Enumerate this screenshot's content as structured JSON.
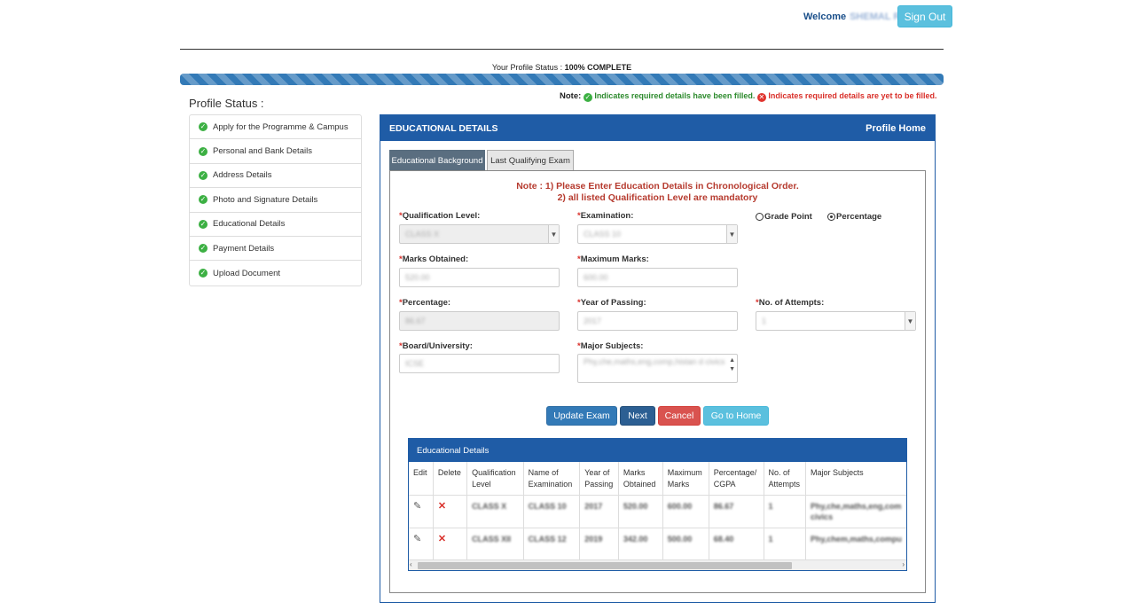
{
  "header": {
    "welcome_label": "Welcome",
    "user_name": "SHEMAL RAJ",
    "signout_label": "Sign Out"
  },
  "profile": {
    "status_label": "Your Profile Status :",
    "status_value": "100% COMPLETE",
    "progress_percent": 100
  },
  "note": {
    "label": "Note:",
    "filled": "Indicates required details have been filled.",
    "not_filled": "Indicates required details are yet to be filled."
  },
  "sidebar": {
    "title": "Profile Status :",
    "items": [
      {
        "label": "Apply for the Programme & Campus"
      },
      {
        "label": "Personal and Bank Details"
      },
      {
        "label": "Address Details"
      },
      {
        "label": "Photo and Signature Details"
      },
      {
        "label": "Educational Details"
      },
      {
        "label": "Payment Details"
      },
      {
        "label": "Upload Document"
      }
    ]
  },
  "panel": {
    "title": "EDUCATIONAL DETAILS",
    "home_link": "Profile Home",
    "tabs": [
      {
        "label": "Educational Background"
      },
      {
        "label": "Last Qualifying Exam"
      }
    ]
  },
  "instructions": {
    "line1": "Note : 1) Please Enter Education Details in Chronological Order.",
    "line2": "2) all listed Qualification Level are mandatory"
  },
  "form": {
    "qualification_level": {
      "label": "Qualification Level:",
      "value": "CLASS X"
    },
    "examination": {
      "label": "Examination:",
      "value": "CLASS 10"
    },
    "grade_point": {
      "label": "Grade Point",
      "selected": false
    },
    "percentage_radio": {
      "label": "Percentage",
      "selected": true
    },
    "marks_obtained": {
      "label": "Marks Obtained:",
      "value": "520.00"
    },
    "maximum_marks": {
      "label": "Maximum Marks:",
      "value": "600.00"
    },
    "percentage": {
      "label": "Percentage:",
      "value": "86.67"
    },
    "year_of_passing": {
      "label": "Year of Passing:",
      "value": "2017"
    },
    "attempts": {
      "label": "No. of Attempts:",
      "value": "1"
    },
    "board": {
      "label": "Board/University:",
      "value": "ICSE"
    },
    "major_subjects": {
      "label": "Major Subjects:",
      "value": "Phy,che,maths,eng,comp,histan d civics"
    },
    "required_mark": "*"
  },
  "buttons": {
    "update": "Update Exam",
    "next": "Next",
    "cancel": "Cancel",
    "home": "Go to Home"
  },
  "table": {
    "title": "Educational Details",
    "headers": {
      "edit": "Edit",
      "delete": "Delete",
      "qual1": "Qualification",
      "qual2": "Level",
      "name1": "Name of",
      "name2": "Examination",
      "year1": "Year of",
      "year2": "Passing",
      "marks1": "Marks",
      "marks2": "Obtained",
      "max1": "Maximum",
      "max2": "Marks",
      "pct1": "Percentage/",
      "pct2": "CGPA",
      "att1": "No. of",
      "att2": "Attempts",
      "subj": "Major Subjects"
    },
    "rows": [
      {
        "level": "CLASS X",
        "exam": "CLASS 10",
        "year": "2017",
        "marks": "520.00",
        "max": "600.00",
        "pct": "86.67",
        "attempts": "1",
        "subjects1": "Phy,che,maths,eng,com",
        "subjects2": "civics"
      },
      {
        "level": "CLASS XII",
        "exam": "CLASS 12",
        "year": "2019",
        "marks": "342.00",
        "max": "500.00",
        "pct": "68.40",
        "attempts": "1",
        "subjects1": "Phy,chem,maths,compu",
        "subjects2": ""
      }
    ]
  },
  "colors": {
    "primary": "#1f5ca6",
    "success": "#3cb043",
    "danger": "#d9302a",
    "info": "#5bc0de"
  }
}
